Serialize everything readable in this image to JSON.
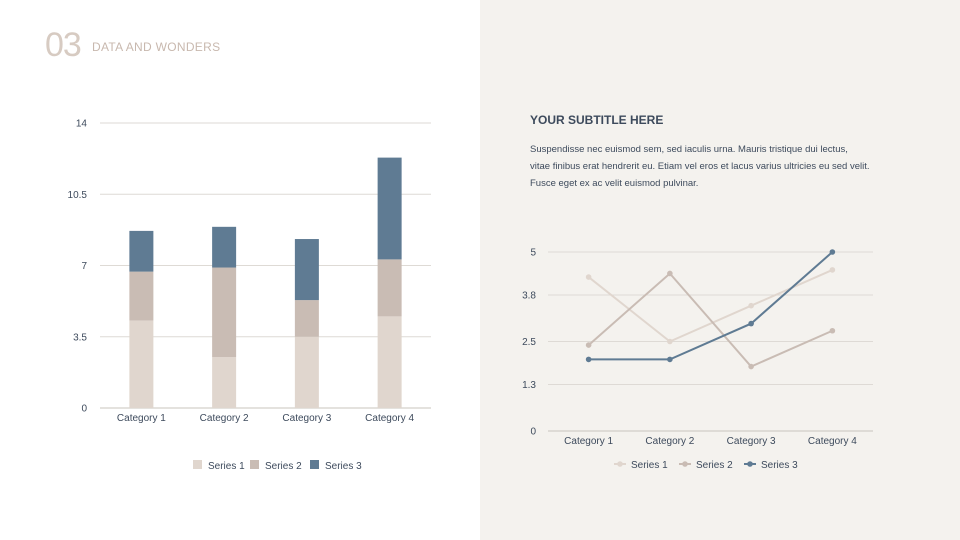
{
  "header": {
    "number": "03",
    "title": "DATA AND WONDERS"
  },
  "text_panel": {
    "subtitle": "YOUR SUBTITLE HERE",
    "body": "Suspendisse nec euismod sem, sed iaculis urna. Mauris tristique dui lectus, vitae finibus erat hendrerit eu. Etiam vel eros et lacus varius ultricies eu sed velit. Fusce eget ex ac velit euismod pulvinar."
  },
  "colors": {
    "series1": "#e0d6ce",
    "series2": "#c9bcb4",
    "series3": "#5f7b93",
    "grid": "#dedad5",
    "right_panel_bg": "#f4f2ee",
    "header_number": "#d7cbc2"
  },
  "chart_data": [
    {
      "type": "bar",
      "stacked": true,
      "categories": [
        "Category 1",
        "Category 2",
        "Category 3",
        "Category 4"
      ],
      "series": [
        {
          "name": "Series 1",
          "values": [
            4.3,
            2.5,
            3.5,
            4.5
          ]
        },
        {
          "name": "Series 2",
          "values": [
            2.4,
            4.4,
            1.8,
            2.8
          ]
        },
        {
          "name": "Series 3",
          "values": [
            2.0,
            2.0,
            3.0,
            5.0
          ]
        }
      ],
      "yticks": [
        "0",
        "3.5",
        "7",
        "10.5",
        "14"
      ],
      "ylim": [
        0,
        14
      ],
      "grid": true,
      "legend": "bottom"
    },
    {
      "type": "line",
      "categories": [
        "Category 1",
        "Category 2",
        "Category 3",
        "Category 4"
      ],
      "series": [
        {
          "name": "Series 1",
          "values": [
            4.3,
            2.5,
            3.5,
            4.5
          ]
        },
        {
          "name": "Series 2",
          "values": [
            2.4,
            4.4,
            1.8,
            2.8
          ]
        },
        {
          "name": "Series 3",
          "values": [
            2.0,
            2.0,
            3.0,
            5.0
          ]
        }
      ],
      "yticks": [
        "0",
        "1.3",
        "2.5",
        "3.8",
        "5"
      ],
      "ylim": [
        0,
        5
      ],
      "grid": true,
      "legend": "bottom"
    }
  ]
}
